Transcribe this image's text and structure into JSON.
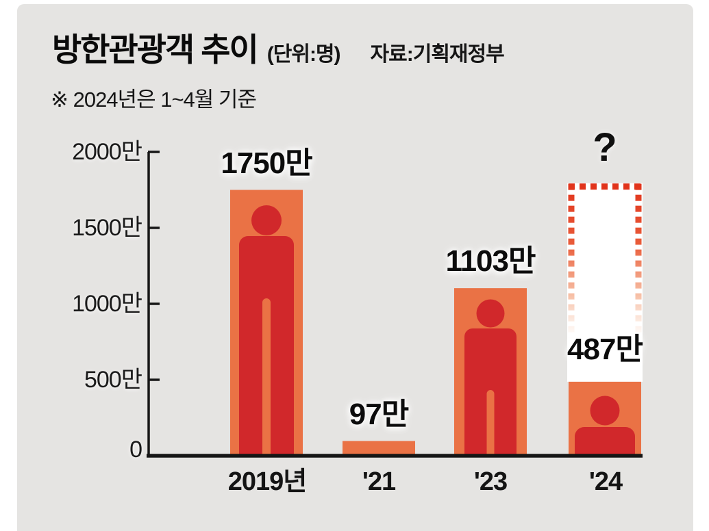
{
  "header": {
    "title": "방한관광객 추이",
    "unit_label": "(단위:명)",
    "source_label": "자료:기획재정부",
    "footnote": "※ 2024년은 1~4월 기준"
  },
  "chart_data": {
    "type": "bar",
    "title": "방한관광객 추이",
    "unit": "만 명 (10,000 persons)",
    "categories": [
      "2019년",
      "'21",
      "'23",
      "'24"
    ],
    "values": [
      1750,
      97,
      1103,
      487
    ],
    "value_labels": [
      "1750만",
      "97만",
      "1103만",
      "487만"
    ],
    "y_ticks": [
      {
        "value": 2000,
        "label": "2000만"
      },
      {
        "value": 1500,
        "label": "1500만"
      },
      {
        "value": 1000,
        "label": "1000만"
      },
      {
        "value": 500,
        "label": "500만"
      },
      {
        "value": 0,
        "label": "0"
      }
    ],
    "ylim": [
      0,
      2000
    ],
    "grid": false,
    "legend": "none",
    "footnote": "※ 2024년은 1~4월 기준",
    "source": "기획재정부",
    "projection": {
      "category": "'24",
      "label": "?",
      "estimated_top_value": 1790,
      "style": "dotted-outline-fading"
    },
    "person_icon_in_bars": [
      true,
      false,
      true,
      true
    ],
    "colors": {
      "bar": "#ea7245",
      "person": "#d1282b",
      "dotted_outline": "#e1331b",
      "axis": "#161616",
      "panel_bg": "#e5e4e2",
      "text": "#101010"
    }
  }
}
